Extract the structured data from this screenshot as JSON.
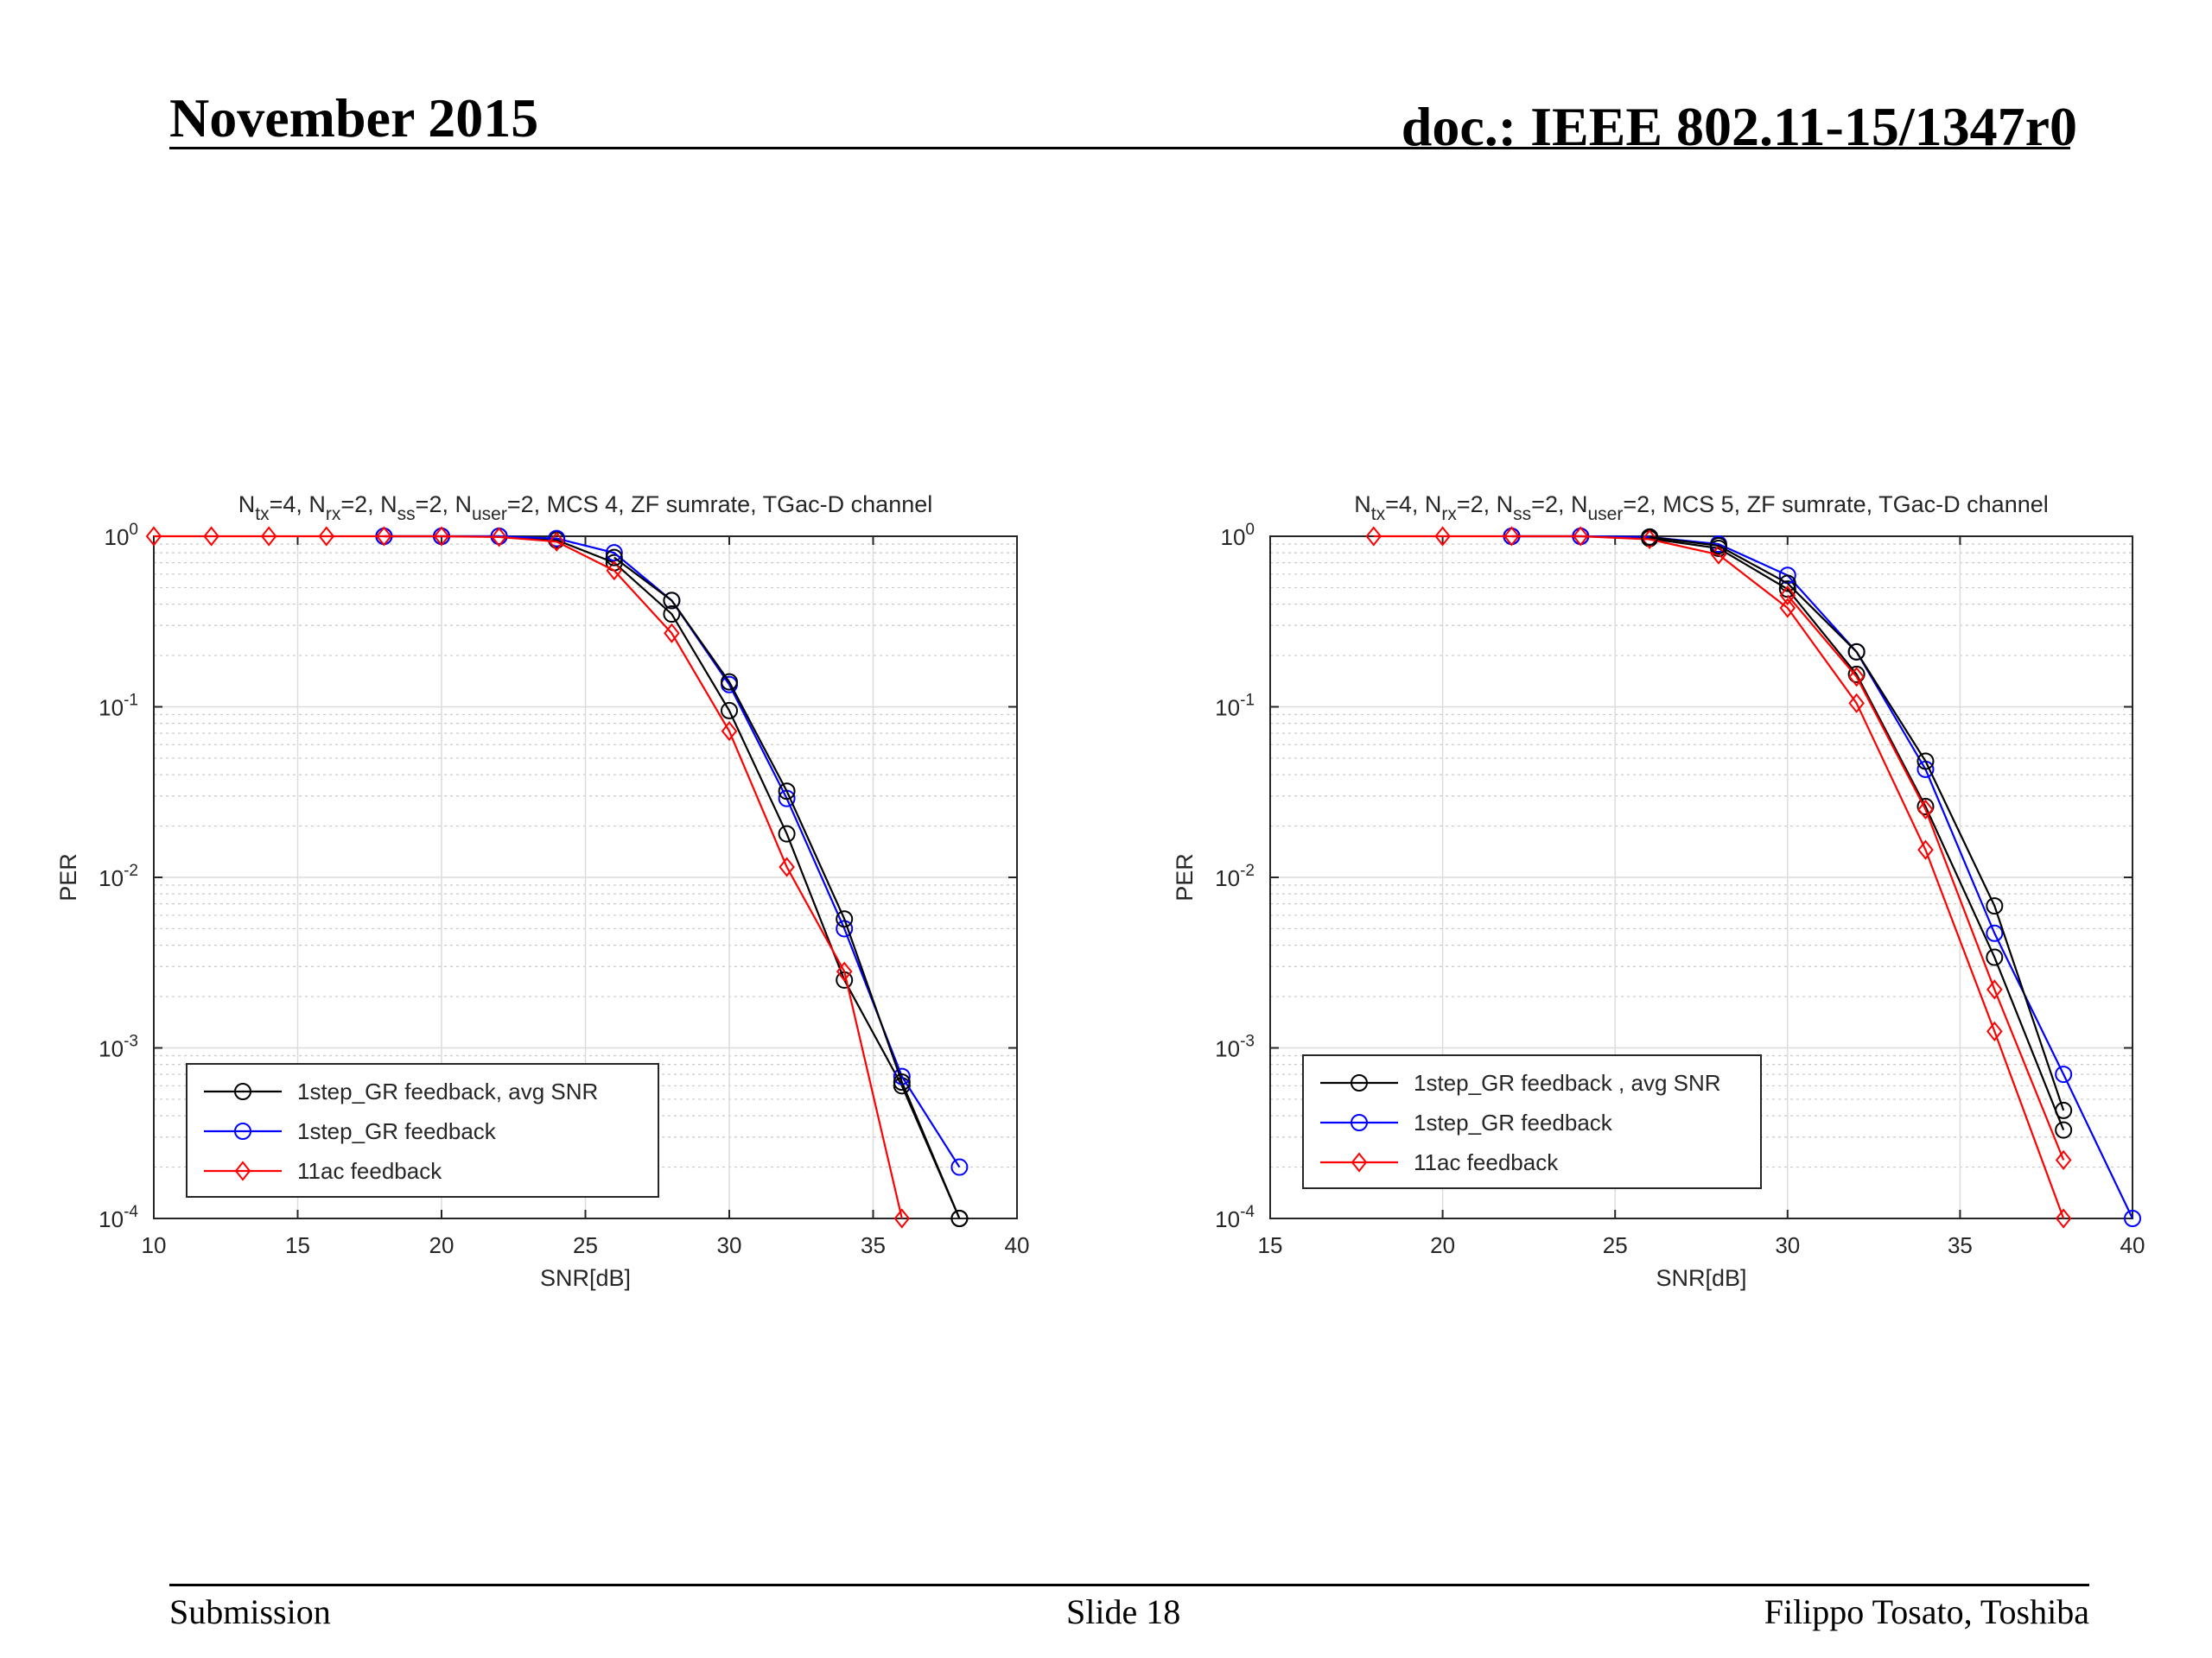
{
  "slide": {
    "date": "November 2015",
    "doc": "doc.: IEEE 802.11-15/1347r0",
    "footer_left": "Submission",
    "footer_center": "Slide 18",
    "footer_right": "Filippo Tosato, Toshiba"
  },
  "colors": {
    "black": "#000000",
    "blue": "#0000ff",
    "red": "#ff0000"
  },
  "chart_data": [
    {
      "type": "line",
      "title": "N_tx=4, N_rx=2, N_ss=2, N_user=2, MCS 4, ZF sumrate, TGac-D channel",
      "title_parts": [
        {
          "t": "N",
          "sub": false
        },
        {
          "t": "tx",
          "sub": true
        },
        {
          "t": "=4, N",
          "sub": false
        },
        {
          "t": "rx",
          "sub": true
        },
        {
          "t": "=2, N",
          "sub": false
        },
        {
          "t": "ss",
          "sub": true
        },
        {
          "t": "=2, N",
          "sub": false
        },
        {
          "t": "user",
          "sub": true
        },
        {
          "t": "=2, MCS 4, ZF sumrate, TGac-D channel",
          "sub": false
        }
      ],
      "xlabel": "SNR[dB]",
      "ylabel": "PER",
      "xlim": [
        10,
        40
      ],
      "ylim": [
        0.0001,
        1
      ],
      "yscale": "log",
      "xticks": [
        10,
        15,
        20,
        25,
        30,
        35,
        40
      ],
      "yticks": [
        {
          "base": "10",
          "exp": "0"
        },
        {
          "base": "10",
          "exp": "-1"
        },
        {
          "base": "10",
          "exp": "-2"
        },
        {
          "base": "10",
          "exp": "-3"
        },
        {
          "base": "10",
          "exp": "-4"
        }
      ],
      "grid": true,
      "legend_position": "bottom-left",
      "series": [
        {
          "name": "1step_GR feedback, avg SNR",
          "color": "#000000",
          "marker": "circle",
          "x": [
            18,
            20,
            22,
            24,
            26,
            28,
            30,
            32,
            34,
            36,
            38
          ],
          "y": [
            1,
            1,
            1,
            0.95,
            0.7,
            0.35,
            0.095,
            0.018,
            0.0025,
            0.0006,
            0.0001
          ]
        },
        {
          "name": "1step_GR feedback",
          "color": "#0000ff",
          "marker": "circle",
          "x": [
            18,
            20,
            22,
            24,
            26,
            28,
            30,
            32,
            34,
            36,
            38
          ],
          "y": [
            1,
            1,
            1,
            0.97,
            0.8,
            0.42,
            0.135,
            0.029,
            0.005,
            0.00068,
            0.0002
          ]
        },
        {
          "name": "11ac feedback",
          "color": "#ff0000",
          "marker": "diamond",
          "x": [
            10,
            12,
            14,
            16,
            18,
            20,
            22,
            24,
            26,
            28,
            30,
            32,
            34,
            36
          ],
          "y": [
            1,
            1,
            1,
            1,
            1,
            1,
            0.99,
            0.93,
            0.63,
            0.27,
            0.072,
            0.0115,
            0.0028,
            0.0001
          ]
        },
        {
          "name": "",
          "color": "#000000",
          "marker": "circle",
          "x": [
            26,
            28,
            30,
            32,
            34,
            36,
            38
          ],
          "y": [
            0.75,
            0.42,
            0.14,
            0.032,
            0.0057,
            0.00063,
            0.0001
          ]
        }
      ]
    },
    {
      "type": "line",
      "title": "N_tx=4, N_rx=2, N_ss=2, N_user=2, MCS 5, ZF sumrate, TGac-D channel",
      "title_parts": [
        {
          "t": "N",
          "sub": false
        },
        {
          "t": "tx",
          "sub": true
        },
        {
          "t": "=4, N",
          "sub": false
        },
        {
          "t": "rx",
          "sub": true
        },
        {
          "t": "=2, N",
          "sub": false
        },
        {
          "t": "ss",
          "sub": true
        },
        {
          "t": "=2, N",
          "sub": false
        },
        {
          "t": "user",
          "sub": true
        },
        {
          "t": "=2, MCS 5, ZF sumrate, TGac-D channel",
          "sub": false
        }
      ],
      "xlabel": "SNR[dB]",
      "ylabel": "PER",
      "xlim": [
        15,
        40
      ],
      "ylim": [
        0.0001,
        1
      ],
      "yscale": "log",
      "xticks": [
        15,
        20,
        25,
        30,
        35,
        40
      ],
      "yticks": [
        {
          "base": "10",
          "exp": "0"
        },
        {
          "base": "10",
          "exp": "-1"
        },
        {
          "base": "10",
          "exp": "-2"
        },
        {
          "base": "10",
          "exp": "-3"
        },
        {
          "base": "10",
          "exp": "-4"
        }
      ],
      "grid": true,
      "legend_position": "bottom-left",
      "series": [
        {
          "name": "1step_GR feedback , avg SNR",
          "color": "#000000",
          "marker": "circle",
          "x": [
            22,
            24,
            26,
            28,
            30,
            32,
            34,
            36,
            38
          ],
          "y": [
            1,
            1,
            0.97,
            0.85,
            0.49,
            0.155,
            0.026,
            0.0034,
            0.00033
          ]
        },
        {
          "name": "1step_GR feedback",
          "color": "#0000ff",
          "marker": "circle",
          "x": [
            22,
            24,
            26,
            28,
            30,
            32,
            34,
            36,
            38,
            40
          ],
          "y": [
            1,
            1,
            0.99,
            0.9,
            0.59,
            0.21,
            0.043,
            0.0047,
            0.0007,
            0.0001
          ]
        },
        {
          "name": "11ac feedback",
          "color": "#ff0000",
          "marker": "diamond",
          "x": [
            18,
            20,
            22,
            24,
            26,
            28,
            30,
            32,
            34,
            36,
            38
          ],
          "y": [
            1,
            1,
            1,
            1,
            0.96,
            0.78,
            0.38,
            0.105,
            0.0145,
            0.00125,
            0.0001
          ]
        },
        {
          "name": "",
          "color": "#000000",
          "marker": "circle",
          "x": [
            26,
            28,
            30,
            32,
            34,
            36,
            38
          ],
          "y": [
            0.99,
            0.88,
            0.53,
            0.21,
            0.048,
            0.0068,
            0.00043
          ]
        },
        {
          "name": "",
          "color": "#ff0000",
          "marker": "diamond",
          "x": [
            30,
            32,
            34,
            36,
            38
          ],
          "y": [
            0.45,
            0.15,
            0.025,
            0.0022,
            0.00022
          ]
        }
      ]
    }
  ]
}
